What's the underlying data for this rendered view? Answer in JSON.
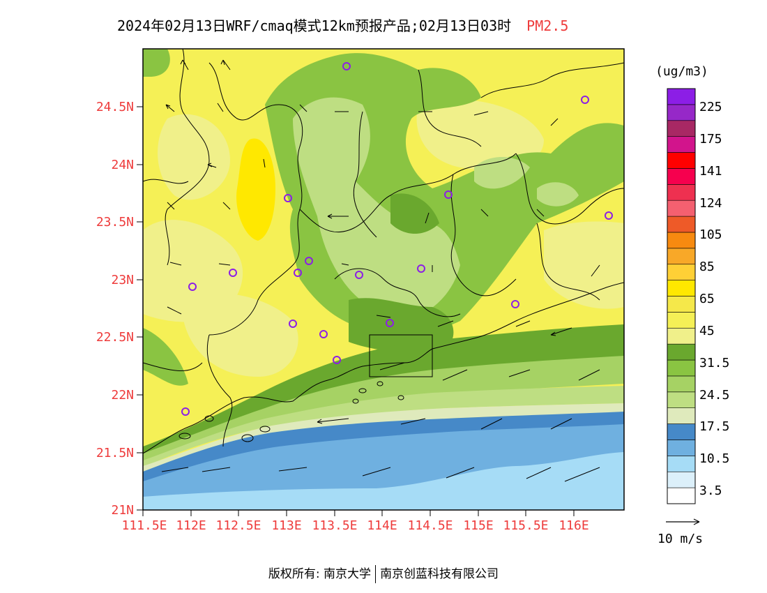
{
  "title": {
    "main": "2024年02月13日WRF/cmaq模式12km预报产品;02月13日03时",
    "species": "PM2.5",
    "species_color": "#ee3b3b"
  },
  "axes": {
    "lat_labels": [
      "24.5N",
      "24N",
      "23.5N",
      "23N",
      "22.5N",
      "22N",
      "21.5N",
      "21N"
    ],
    "lon_labels": [
      "111.5E",
      "112E",
      "112.5E",
      "113E",
      "113.5E",
      "114E",
      "114.5E",
      "115E",
      "115.5E",
      "116E"
    ],
    "label_color": "#ee3b3b"
  },
  "colorbar": {
    "unit": "(ug/m3)",
    "colors": [
      "#ffffff",
      "#dcf0fa",
      "#a6dcf6",
      "#6fb0e0",
      "#4689c8",
      "#dfeabc",
      "#bede82",
      "#a6d264",
      "#8ac442",
      "#6aa82e",
      "#f0f08a",
      "#f5f056",
      "#f5e84a",
      "#ffe800",
      "#ffd036",
      "#f8a828",
      "#f78a10",
      "#ee5a28",
      "#f46070",
      "#ee3050",
      "#f6004e",
      "#ff0000",
      "#d2148c",
      "#a82864",
      "#9628c8",
      "#8c1ee6"
    ],
    "tick_labels": [
      "3.5",
      "10.5",
      "17.5",
      "24.5",
      "31.5",
      "45",
      "65",
      "85",
      "105",
      "124",
      "141",
      "175",
      "225"
    ]
  },
  "wind_legend": {
    "label": "10 m/s"
  },
  "map_colors": {
    "ocean_light": "#a6dcf6",
    "ocean_mid": "#6fb0e0",
    "ocean_dark": "#4689c8",
    "coast_pale": "#dfeabc",
    "green_light": "#bede82",
    "green_mid": "#a6d264",
    "green_dark": "#6aa82e",
    "yellow_pale": "#f0f08a",
    "yellow": "#f5f056",
    "yellow_bright": "#ffe800",
    "station": "#8c1ee6"
  },
  "footer": {
    "left": "版权所有: 南京大学",
    "right": "南京创蓝科技有限公司"
  }
}
